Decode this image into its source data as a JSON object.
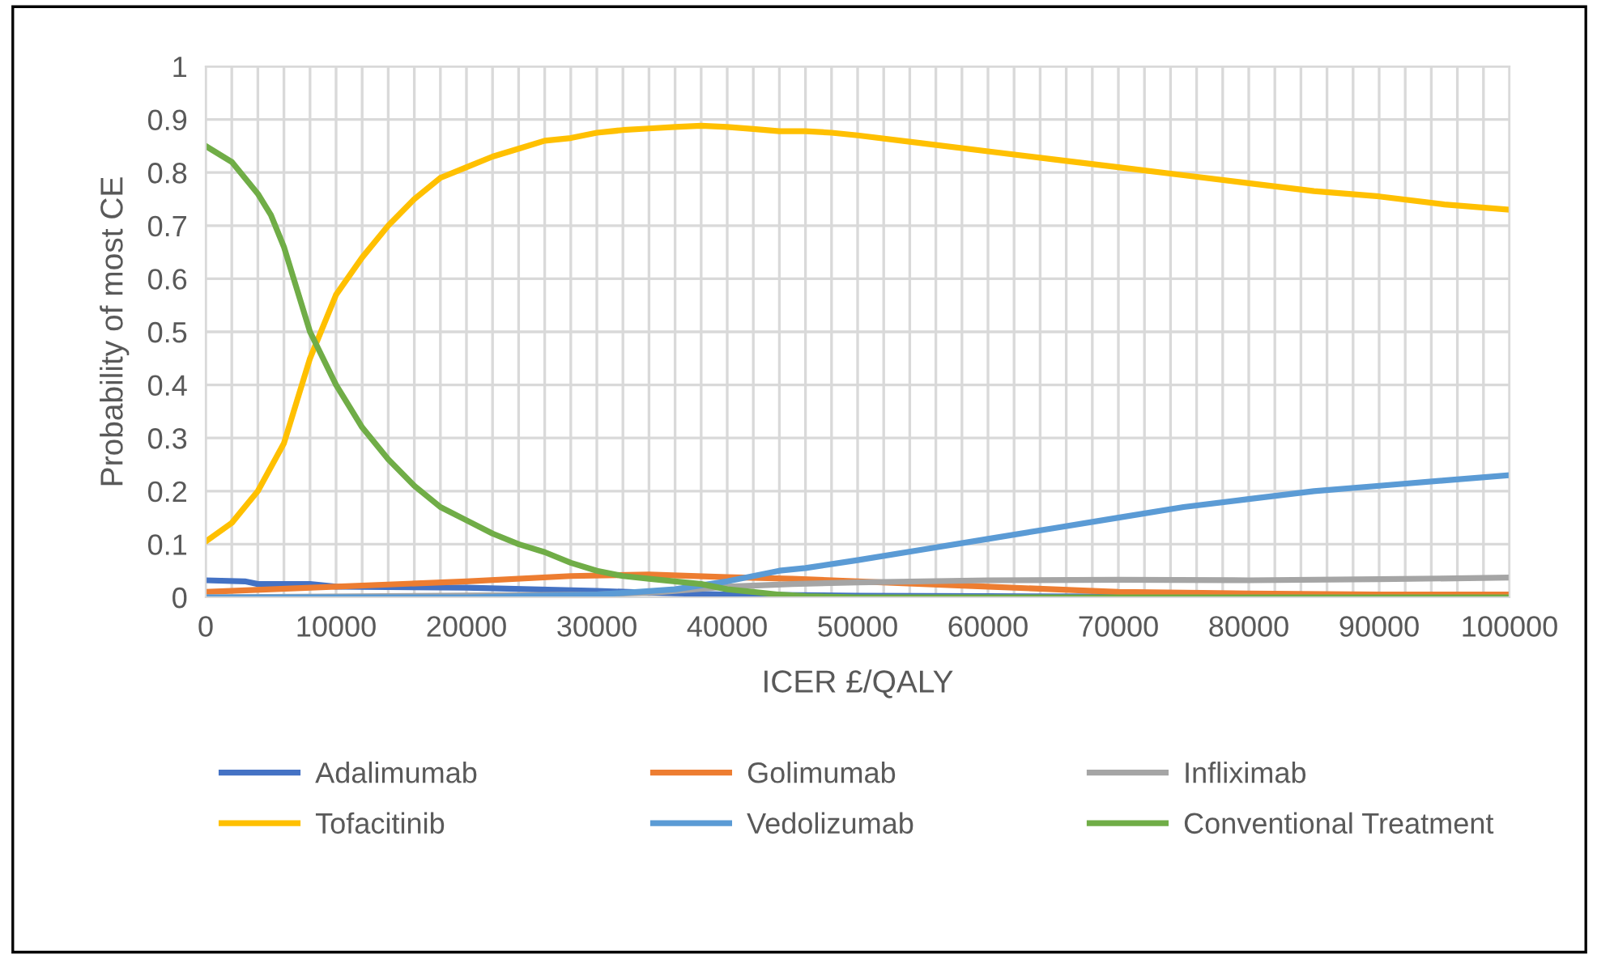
{
  "chart_data": {
    "type": "line",
    "xlabel": "ICER £/QALY",
    "ylabel": "Probability of most CE",
    "xlim": [
      0,
      100000
    ],
    "ylim": [
      0,
      1
    ],
    "xticks": [
      0,
      {
        "value": 2000,
        "label": null
      },
      {
        "value": 4000,
        "label": null
      },
      {
        "value": 6000,
        "label": null
      },
      {
        "value": 8000,
        "label": null
      },
      10000,
      {
        "value": 12000,
        "label": null
      },
      {
        "value": 14000,
        "label": null
      },
      {
        "value": 16000,
        "label": null
      },
      {
        "value": 18000,
        "label": null
      },
      20000,
      {
        "value": 22000,
        "label": null
      },
      {
        "value": 24000,
        "label": null
      },
      {
        "value": 26000,
        "label": null
      },
      {
        "value": 28000,
        "label": null
      },
      30000,
      {
        "value": 32000,
        "label": null
      },
      {
        "value": 34000,
        "label": null
      },
      {
        "value": 36000,
        "label": null
      },
      {
        "value": 38000,
        "label": null
      },
      40000,
      {
        "value": 42000,
        "label": null
      },
      {
        "value": 44000,
        "label": null
      },
      {
        "value": 46000,
        "label": null
      },
      {
        "value": 48000,
        "label": null
      },
      50000,
      {
        "value": 52000,
        "label": null
      },
      {
        "value": 54000,
        "label": null
      },
      {
        "value": 56000,
        "label": null
      },
      {
        "value": 58000,
        "label": null
      },
      60000,
      {
        "value": 62000,
        "label": null
      },
      {
        "value": 64000,
        "label": null
      },
      {
        "value": 66000,
        "label": null
      },
      {
        "value": 68000,
        "label": null
      },
      70000,
      {
        "value": 72000,
        "label": null
      },
      {
        "value": 74000,
        "label": null
      },
      {
        "value": 76000,
        "label": null
      },
      {
        "value": 78000,
        "label": null
      },
      80000,
      {
        "value": 82000,
        "label": null
      },
      {
        "value": 84000,
        "label": null
      },
      {
        "value": 86000,
        "label": null
      },
      {
        "value": 88000,
        "label": null
      },
      90000,
      {
        "value": 92000,
        "label": null
      },
      {
        "value": 94000,
        "label": null
      },
      {
        "value": 96000,
        "label": null
      },
      {
        "value": 98000,
        "label": null
      },
      100000
    ],
    "yticks": [
      0,
      0.1,
      0.2,
      0.3,
      0.4,
      0.5,
      0.6,
      0.7,
      0.8,
      0.9,
      1
    ],
    "grid": true,
    "legend": "bottom",
    "marker": "none",
    "line_style": "solid",
    "series": [
      {
        "name": "Adalimumab",
        "color": "#4472c4",
        "x": [
          0,
          3000,
          4000,
          8000,
          10000,
          20000,
          30000,
          35000,
          40000,
          50000,
          60000,
          100000
        ],
        "values": [
          0.032,
          0.03,
          0.025,
          0.025,
          0.02,
          0.018,
          0.012,
          0.008,
          0.005,
          0.003,
          0.002,
          0
        ]
      },
      {
        "name": "Golimumab",
        "color": "#ed7d31",
        "x": [
          0,
          10000,
          20000,
          28000,
          34000,
          40000,
          45000,
          50000,
          60000,
          70000,
          80000,
          90000,
          100000
        ],
        "values": [
          0.01,
          0.02,
          0.03,
          0.04,
          0.043,
          0.038,
          0.035,
          0.03,
          0.02,
          0.01,
          0.007,
          0.005,
          0.005
        ]
      },
      {
        "name": "Infliximab",
        "color": "#a5a5a5",
        "x": [
          0,
          30000,
          35000,
          40000,
          45000,
          50000,
          60000,
          70000,
          80000,
          90000,
          100000
        ],
        "values": [
          0,
          0.005,
          0.01,
          0.02,
          0.025,
          0.028,
          0.032,
          0.033,
          0.032,
          0.034,
          0.037
        ]
      },
      {
        "name": "Tofacitinib",
        "color": "#ffc000",
        "x": [
          0,
          2000,
          4000,
          6000,
          7000,
          8000,
          10000,
          12000,
          14000,
          16000,
          18000,
          20000,
          22000,
          24000,
          26000,
          28000,
          30000,
          32000,
          34000,
          36000,
          38000,
          40000,
          42000,
          44000,
          46000,
          48000,
          50000,
          55000,
          60000,
          65000,
          70000,
          75000,
          80000,
          85000,
          90000,
          95000,
          100000
        ],
        "values": [
          0.105,
          0.14,
          0.2,
          0.29,
          0.37,
          0.45,
          0.57,
          0.64,
          0.7,
          0.75,
          0.79,
          0.81,
          0.83,
          0.845,
          0.86,
          0.865,
          0.875,
          0.88,
          0.883,
          0.886,
          0.888,
          0.886,
          0.882,
          0.878,
          0.878,
          0.875,
          0.87,
          0.855,
          0.84,
          0.825,
          0.81,
          0.795,
          0.78,
          0.765,
          0.755,
          0.74,
          0.73
        ]
      },
      {
        "name": "Vedolizumab",
        "color": "#5b9bd5",
        "x": [
          0,
          20000,
          30000,
          36000,
          40000,
          42000,
          44000,
          46000,
          50000,
          55000,
          60000,
          65000,
          70000,
          75000,
          80000,
          85000,
          90000,
          95000,
          100000
        ],
        "values": [
          0,
          0,
          0.005,
          0.015,
          0.03,
          0.04,
          0.05,
          0.055,
          0.07,
          0.09,
          0.11,
          0.13,
          0.15,
          0.17,
          0.185,
          0.2,
          0.21,
          0.22,
          0.23
        ]
      },
      {
        "name": "Conventional Treatment",
        "color": "#70ad47",
        "x": [
          0,
          2000,
          4000,
          5000,
          6000,
          7000,
          8000,
          10000,
          12000,
          14000,
          16000,
          18000,
          20000,
          22000,
          24000,
          26000,
          28000,
          30000,
          32000,
          34000,
          36000,
          38000,
          40000,
          42000,
          44000,
          46000,
          50000,
          100000
        ],
        "values": [
          0.85,
          0.82,
          0.76,
          0.72,
          0.66,
          0.58,
          0.5,
          0.4,
          0.32,
          0.26,
          0.21,
          0.17,
          0.145,
          0.12,
          0.1,
          0.085,
          0.065,
          0.05,
          0.04,
          0.035,
          0.03,
          0.025,
          0.015,
          0.01,
          0.005,
          0.002,
          0,
          0
        ]
      }
    ]
  }
}
